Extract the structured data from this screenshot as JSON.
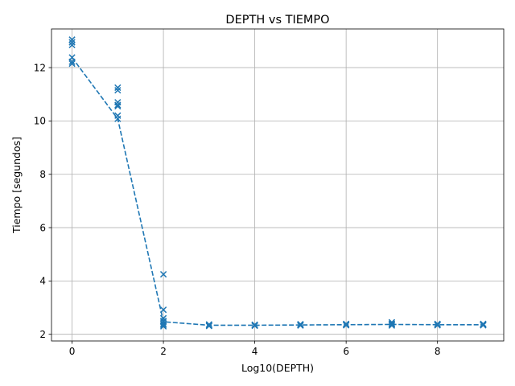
{
  "chart_data": {
    "type": "line",
    "title": "DEPTH vs TIEMPO",
    "xlabel": "Log10(DEPTH)",
    "ylabel": "Tiempo [segundos]",
    "xlim": [
      -0.45,
      9.45
    ],
    "ylim": [
      1.75,
      13.45
    ],
    "xticks": [
      0,
      2,
      4,
      6,
      8
    ],
    "yticks": [
      2,
      4,
      6,
      8,
      10,
      12
    ],
    "grid": true,
    "colors": {
      "series": "#1f77b4",
      "grid": "#b0b0b0",
      "axis": "#000000"
    },
    "series": [
      {
        "style": "dashed-line",
        "x": [
          0,
          1,
          2,
          3,
          4,
          5,
          6,
          7,
          8,
          9
        ],
        "y": [
          12.38,
          10.08,
          2.47,
          2.34,
          2.34,
          2.35,
          2.36,
          2.37,
          2.36,
          2.36
        ]
      },
      {
        "style": "x-markers",
        "points": [
          [
            0,
            13.05
          ],
          [
            0,
            12.95
          ],
          [
            0,
            12.85
          ],
          [
            0,
            12.38
          ],
          [
            0,
            12.22
          ],
          [
            0,
            12.15
          ],
          [
            1,
            11.25
          ],
          [
            1,
            11.15
          ],
          [
            1,
            10.7
          ],
          [
            1,
            10.6
          ],
          [
            1,
            10.55
          ],
          [
            1,
            10.2
          ],
          [
            1,
            10.08
          ],
          [
            2,
            4.25
          ],
          [
            2,
            2.92
          ],
          [
            2,
            2.6
          ],
          [
            2,
            2.5
          ],
          [
            2,
            2.47
          ],
          [
            2,
            2.4
          ],
          [
            2,
            2.35
          ],
          [
            2,
            2.3
          ],
          [
            3,
            2.37
          ],
          [
            3,
            2.34
          ],
          [
            3,
            2.31
          ],
          [
            4,
            2.36
          ],
          [
            4,
            2.34
          ],
          [
            4,
            2.32
          ],
          [
            5,
            2.38
          ],
          [
            5,
            2.35
          ],
          [
            5,
            2.33
          ],
          [
            6,
            2.39
          ],
          [
            6,
            2.36
          ],
          [
            6,
            2.34
          ],
          [
            7,
            2.45
          ],
          [
            7,
            2.4
          ],
          [
            7,
            2.37
          ],
          [
            7,
            2.33
          ],
          [
            8,
            2.39
          ],
          [
            8,
            2.36
          ],
          [
            8,
            2.34
          ],
          [
            9,
            2.39
          ],
          [
            9,
            2.36
          ],
          [
            9,
            2.34
          ]
        ]
      }
    ]
  }
}
